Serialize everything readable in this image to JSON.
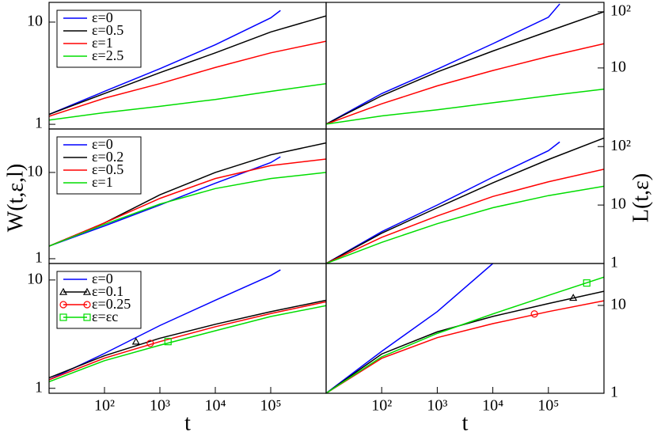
{
  "chart_data": [
    {
      "type": "line",
      "log_x": true,
      "log_y": true,
      "xlim": [
        10,
        1000000
      ],
      "ylim": [
        0.9,
        15.6
      ],
      "yticks": [
        1,
        10
      ],
      "y_side": "left",
      "series": [
        {
          "name": "ε=0",
          "color": "#0000ff",
          "x": [
            10,
            100,
            1000,
            10000,
            100000,
            150000
          ],
          "values": [
            1.25,
            2.1,
            3.5,
            6.0,
            11,
            13
          ]
        },
        {
          "name": "ε=0.5",
          "color": "#000000",
          "x": [
            10,
            100,
            1000,
            10000,
            100000,
            1000000
          ],
          "values": [
            1.25,
            2.0,
            3.2,
            5.0,
            8.0,
            11.5
          ]
        },
        {
          "name": "ε=1",
          "color": "#ff0000",
          "x": [
            10,
            100,
            1000,
            10000,
            100000,
            1000000
          ],
          "values": [
            1.2,
            1.8,
            2.5,
            3.6,
            5.0,
            6.5
          ]
        },
        {
          "name": "ε=2.5",
          "color": "#00dd00",
          "x": [
            10,
            100,
            1000,
            10000,
            100000,
            1000000
          ],
          "values": [
            1.1,
            1.3,
            1.5,
            1.75,
            2.1,
            2.5
          ]
        }
      ]
    },
    {
      "type": "line",
      "log_x": true,
      "log_y": true,
      "xlim": [
        10,
        1000000
      ],
      "ylim": [
        0.82,
        147
      ],
      "yticks": [
        10,
        {
          "value": 100,
          "label": "10²"
        }
      ],
      "y_side": "right",
      "series": [
        {
          "color": "#0000ff",
          "x": [
            10,
            100,
            1000,
            10000,
            100000,
            160000
          ],
          "values": [
            1,
            3.5,
            9.5,
            27,
            80,
            138
          ]
        },
        {
          "color": "#000000",
          "x": [
            10,
            100,
            1000,
            10000,
            100000,
            1000000
          ],
          "values": [
            1,
            3.2,
            8.5,
            20,
            45,
            100
          ]
        },
        {
          "color": "#ff0000",
          "x": [
            10,
            100,
            1000,
            10000,
            100000,
            1000000
          ],
          "values": [
            1,
            2.3,
            4.8,
            9,
            16,
            27
          ]
        },
        {
          "color": "#00dd00",
          "x": [
            10,
            100,
            1000,
            10000,
            100000,
            1000000
          ],
          "values": [
            1,
            1.4,
            1.8,
            2.4,
            3.2,
            4.2
          ]
        }
      ]
    },
    {
      "type": "line",
      "log_x": true,
      "log_y": true,
      "xlim": [
        10,
        1000000
      ],
      "ylim": [
        0.88,
        31.9
      ],
      "yticks": [
        1,
        10
      ],
      "y_side": "left",
      "ylabel": "W(t,ε,l)",
      "series": [
        {
          "name": "ε=0",
          "color": "#0000ff",
          "x": [
            10,
            100,
            1000,
            10000,
            100000,
            150000
          ],
          "values": [
            1.4,
            2.4,
            4.2,
            7.5,
            13,
            15.2
          ]
        },
        {
          "name": "ε=0.2",
          "color": "#000000",
          "x": [
            10,
            100,
            1000,
            10000,
            100000,
            1000000
          ],
          "values": [
            1.4,
            2.6,
            5.5,
            10,
            16,
            22
          ]
        },
        {
          "name": "ε=0.5",
          "color": "#ff0000",
          "x": [
            10,
            100,
            1000,
            10000,
            100000,
            1000000
          ],
          "values": [
            1.4,
            2.6,
            5.0,
            8.5,
            12,
            14.3
          ]
        },
        {
          "name": "ε=1",
          "color": "#00dd00",
          "x": [
            10,
            100,
            1000,
            10000,
            100000,
            1000000
          ],
          "values": [
            1.4,
            2.5,
            4.3,
            6.5,
            8.5,
            10
          ]
        }
      ]
    },
    {
      "type": "line",
      "log_x": true,
      "log_y": true,
      "xlim": [
        10,
        1000000
      ],
      "ylim": [
        1,
        200
      ],
      "yticks": [
        1,
        10,
        {
          "value": 100,
          "label": "10²"
        }
      ],
      "y_side": "right",
      "ylabel": "L(t,ε)",
      "series": [
        {
          "color": "#0000ff",
          "x": [
            10,
            100,
            1000,
            10000,
            100000,
            160000
          ],
          "values": [
            1,
            3.5,
            10,
            30,
            85,
            120
          ]
        },
        {
          "color": "#000000",
          "x": [
            10,
            100,
            1000,
            10000,
            100000,
            1000000
          ],
          "values": [
            1,
            3.3,
            9,
            24,
            60,
            140
          ]
        },
        {
          "color": "#ff0000",
          "x": [
            10,
            100,
            1000,
            10000,
            100000,
            1000000
          ],
          "values": [
            1,
            2.8,
            6.5,
            14,
            25,
            41
          ]
        },
        {
          "color": "#00dd00",
          "x": [
            10,
            100,
            1000,
            10000,
            100000,
            1000000
          ],
          "values": [
            1,
            2.3,
            4.8,
            9,
            14.5,
            21
          ]
        }
      ]
    },
    {
      "type": "line",
      "log_x": true,
      "log_y": true,
      "xlim": [
        10,
        1000000
      ],
      "ylim": [
        0.9,
        14.2
      ],
      "yticks": [
        1,
        10
      ],
      "y_side": "left",
      "xlabel": "t",
      "xticks": [
        {
          "value": 100,
          "label": "10²"
        },
        {
          "value": 1000,
          "label": "10³"
        },
        {
          "value": 10000,
          "label": "10⁴"
        },
        {
          "value": 100000,
          "label": "10⁵"
        }
      ],
      "series": [
        {
          "name": "ε=0",
          "color": "#0000ff",
          "x": [
            10,
            100,
            1000,
            10000,
            100000,
            150000
          ],
          "values": [
            1.2,
            2.1,
            3.8,
            6.5,
            11,
            12.4
          ]
        },
        {
          "name": "ε=0.1",
          "color": "#000000",
          "marker": "triangle",
          "x": [
            10,
            100,
            1000,
            10000,
            100000,
            1000000
          ],
          "values": [
            1.25,
            2.0,
            2.9,
            3.9,
            5.1,
            6.5
          ],
          "markers": {
            "x": [
              370
            ],
            "values": [
              2.7
            ]
          }
        },
        {
          "name": "ε=0.25",
          "color": "#ff0000",
          "marker": "circle",
          "x": [
            10,
            100,
            1000,
            10000,
            100000,
            1000000
          ],
          "values": [
            1.2,
            1.9,
            2.7,
            3.7,
            4.9,
            6.3
          ],
          "markers": {
            "x": [
              670
            ],
            "values": [
              2.6
            ]
          }
        },
        {
          "name": "ε=εc",
          "color": "#00dd00",
          "marker": "square",
          "x": [
            10,
            100,
            1000,
            10000,
            100000,
            1000000
          ],
          "values": [
            1.15,
            1.8,
            2.5,
            3.4,
            4.6,
            5.8
          ],
          "markers": {
            "x": [
              1400
            ],
            "values": [
              2.7
            ]
          }
        }
      ]
    },
    {
      "type": "line",
      "log_x": true,
      "log_y": true,
      "xlim": [
        10,
        1000000
      ],
      "ylim": [
        1,
        30
      ],
      "yticks": [
        1,
        10
      ],
      "y_side": "right",
      "xlabel": "t",
      "xticks": [
        {
          "value": 100,
          "label": "10²"
        },
        {
          "value": 1000,
          "label": "10³"
        },
        {
          "value": 10000,
          "label": "10⁴"
        },
        {
          "value": 100000,
          "label": "10⁵"
        }
      ],
      "series": [
        {
          "color": "#0000ff",
          "x": [
            10,
            100,
            1000,
            10000
          ],
          "values": [
            1,
            3,
            8.5,
            30
          ]
        },
        {
          "color": "#000000",
          "marker": "triangle",
          "x": [
            10,
            100,
            1000,
            10000,
            100000,
            1000000
          ],
          "values": [
            1,
            2.8,
            5.0,
            7.5,
            10.5,
            14.5
          ],
          "markers": {
            "x": [
              280000
            ],
            "values": [
              12.2
            ]
          }
        },
        {
          "color": "#ff0000",
          "marker": "circle",
          "x": [
            10,
            100,
            1000,
            10000,
            100000,
            1000000
          ],
          "values": [
            1,
            2.5,
            4.3,
            6.2,
            8.5,
            11.3
          ],
          "markers": {
            "x": [
              56000
            ],
            "values": [
              8
            ]
          }
        },
        {
          "color": "#00dd00",
          "marker": "square",
          "x": [
            10,
            100,
            1000,
            10000,
            100000,
            1000000
          ],
          "values": [
            1,
            2.6,
            4.8,
            8,
            13,
            21
          ],
          "markers": {
            "x": [
              490000
            ],
            "values": [
              18
            ]
          }
        }
      ]
    }
  ]
}
